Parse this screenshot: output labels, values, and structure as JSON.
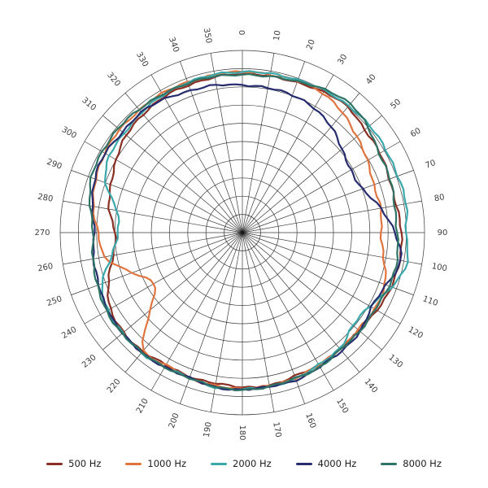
{
  "figure": {
    "background": "#ffffff",
    "grid_color": "#3a3a3a",
    "label_color": "#3d3d3d"
  },
  "chart_data": {
    "type": "line",
    "subtype": "polar",
    "title": "",
    "grid": true,
    "legend_position": "bottom",
    "angle_unit": "deg",
    "angle_ticks": [
      0,
      10,
      20,
      30,
      40,
      50,
      60,
      70,
      80,
      90,
      100,
      110,
      120,
      130,
      140,
      150,
      160,
      170,
      180,
      190,
      200,
      210,
      220,
      230,
      240,
      250,
      260,
      270,
      280,
      290,
      300,
      310,
      320,
      330,
      340,
      350
    ],
    "radial_rings": 10,
    "r_scale": "fraction_of_outer_radius",
    "series": [
      {
        "name": "500 Hz",
        "color": "#8a2f23",
        "r": [
          0.87,
          0.87,
          0.88,
          0.89,
          0.9,
          0.88,
          0.87,
          0.86,
          0.86,
          0.87,
          0.88,
          0.87,
          0.85,
          0.84,
          0.83,
          0.84,
          0.84,
          0.85,
          0.85,
          0.84,
          0.84,
          0.84,
          0.85,
          0.85,
          0.84,
          0.78,
          0.72,
          0.7,
          0.74,
          0.77,
          0.8,
          0.83,
          0.85,
          0.86,
          0.86,
          0.87
        ]
      },
      {
        "name": "1000 Hz",
        "color": "#e0743f",
        "r": [
          0.88,
          0.88,
          0.89,
          0.88,
          0.86,
          0.82,
          0.79,
          0.77,
          0.77,
          0.76,
          0.79,
          0.83,
          0.84,
          0.83,
          0.83,
          0.84,
          0.85,
          0.85,
          0.86,
          0.85,
          0.85,
          0.84,
          0.84,
          0.66,
          0.56,
          0.64,
          0.77,
          0.79,
          0.83,
          0.86,
          0.87,
          0.88,
          0.88,
          0.88,
          0.88,
          0.88
        ]
      },
      {
        "name": "2000 Hz",
        "color": "#3ba8ab",
        "r": [
          0.88,
          0.89,
          0.89,
          0.9,
          0.91,
          0.91,
          0.91,
          0.91,
          0.91,
          0.9,
          0.92,
          0.87,
          0.81,
          0.79,
          0.83,
          0.84,
          0.85,
          0.86,
          0.86,
          0.86,
          0.85,
          0.85,
          0.86,
          0.86,
          0.85,
          0.82,
          0.73,
          0.68,
          0.7,
          0.8,
          0.84,
          0.85,
          0.86,
          0.87,
          0.88,
          0.88
        ]
      },
      {
        "name": "4000 Hz",
        "color": "#262c6e",
        "r": [
          0.81,
          0.81,
          0.8,
          0.79,
          0.76,
          0.71,
          0.69,
          0.7,
          0.77,
          0.84,
          0.88,
          0.84,
          0.82,
          0.84,
          0.85,
          0.85,
          0.86,
          0.86,
          0.86,
          0.86,
          0.85,
          0.85,
          0.86,
          0.86,
          0.85,
          0.84,
          0.83,
          0.81,
          0.84,
          0.86,
          0.87,
          0.86,
          0.86,
          0.85,
          0.83,
          0.82
        ]
      },
      {
        "name": "8000 Hz",
        "color": "#2e7365",
        "r": [
          0.87,
          0.87,
          0.88,
          0.91,
          0.92,
          0.9,
          0.87,
          0.86,
          0.85,
          0.85,
          0.86,
          0.86,
          0.84,
          0.84,
          0.84,
          0.85,
          0.85,
          0.86,
          0.86,
          0.86,
          0.85,
          0.85,
          0.86,
          0.86,
          0.86,
          0.85,
          0.83,
          0.82,
          0.85,
          0.88,
          0.89,
          0.89,
          0.88,
          0.88,
          0.87,
          0.87
        ]
      }
    ]
  }
}
